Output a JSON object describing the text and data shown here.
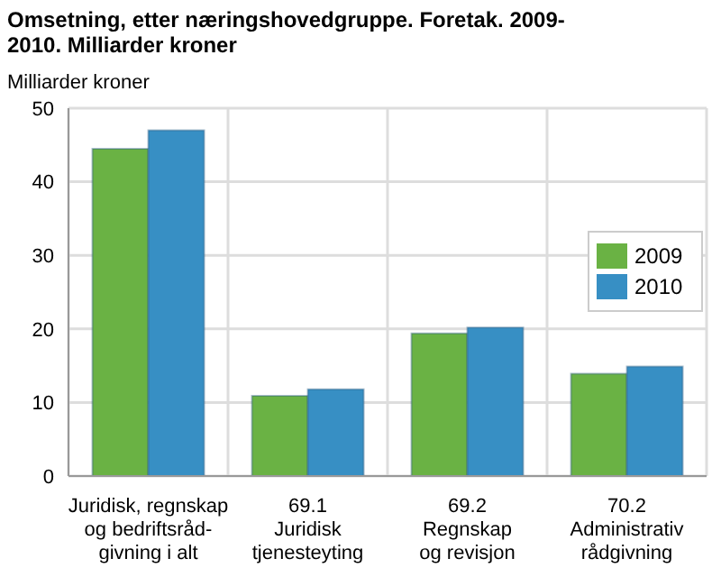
{
  "chart_data": {
    "type": "bar",
    "title": "Omsetning, etter næringshovedgruppe. Foretak. 2009-2010. Milliarder kroner",
    "ylabel": "Milliarder kroner",
    "categories": [
      "Juridisk, regnskap\nog bedriftsråd-\ngivning i alt",
      "69.1\nJuridisk\ntjenesteyting",
      "69.2\nRegnskap\nog revisjon",
      "70.2\nAdministrativ\nrådgivning"
    ],
    "series": [
      {
        "name": "2009",
        "color": "#6ab244",
        "values": [
          44.5,
          10.9,
          19.4,
          13.9
        ]
      },
      {
        "name": "2010",
        "color": "#378fc4",
        "values": [
          47,
          11.8,
          20.2,
          14.9
        ]
      }
    ],
    "ylim": [
      0,
      50
    ],
    "yticks": [
      0,
      10,
      20,
      30,
      40,
      50
    ],
    "grid": true,
    "legend": "right"
  }
}
